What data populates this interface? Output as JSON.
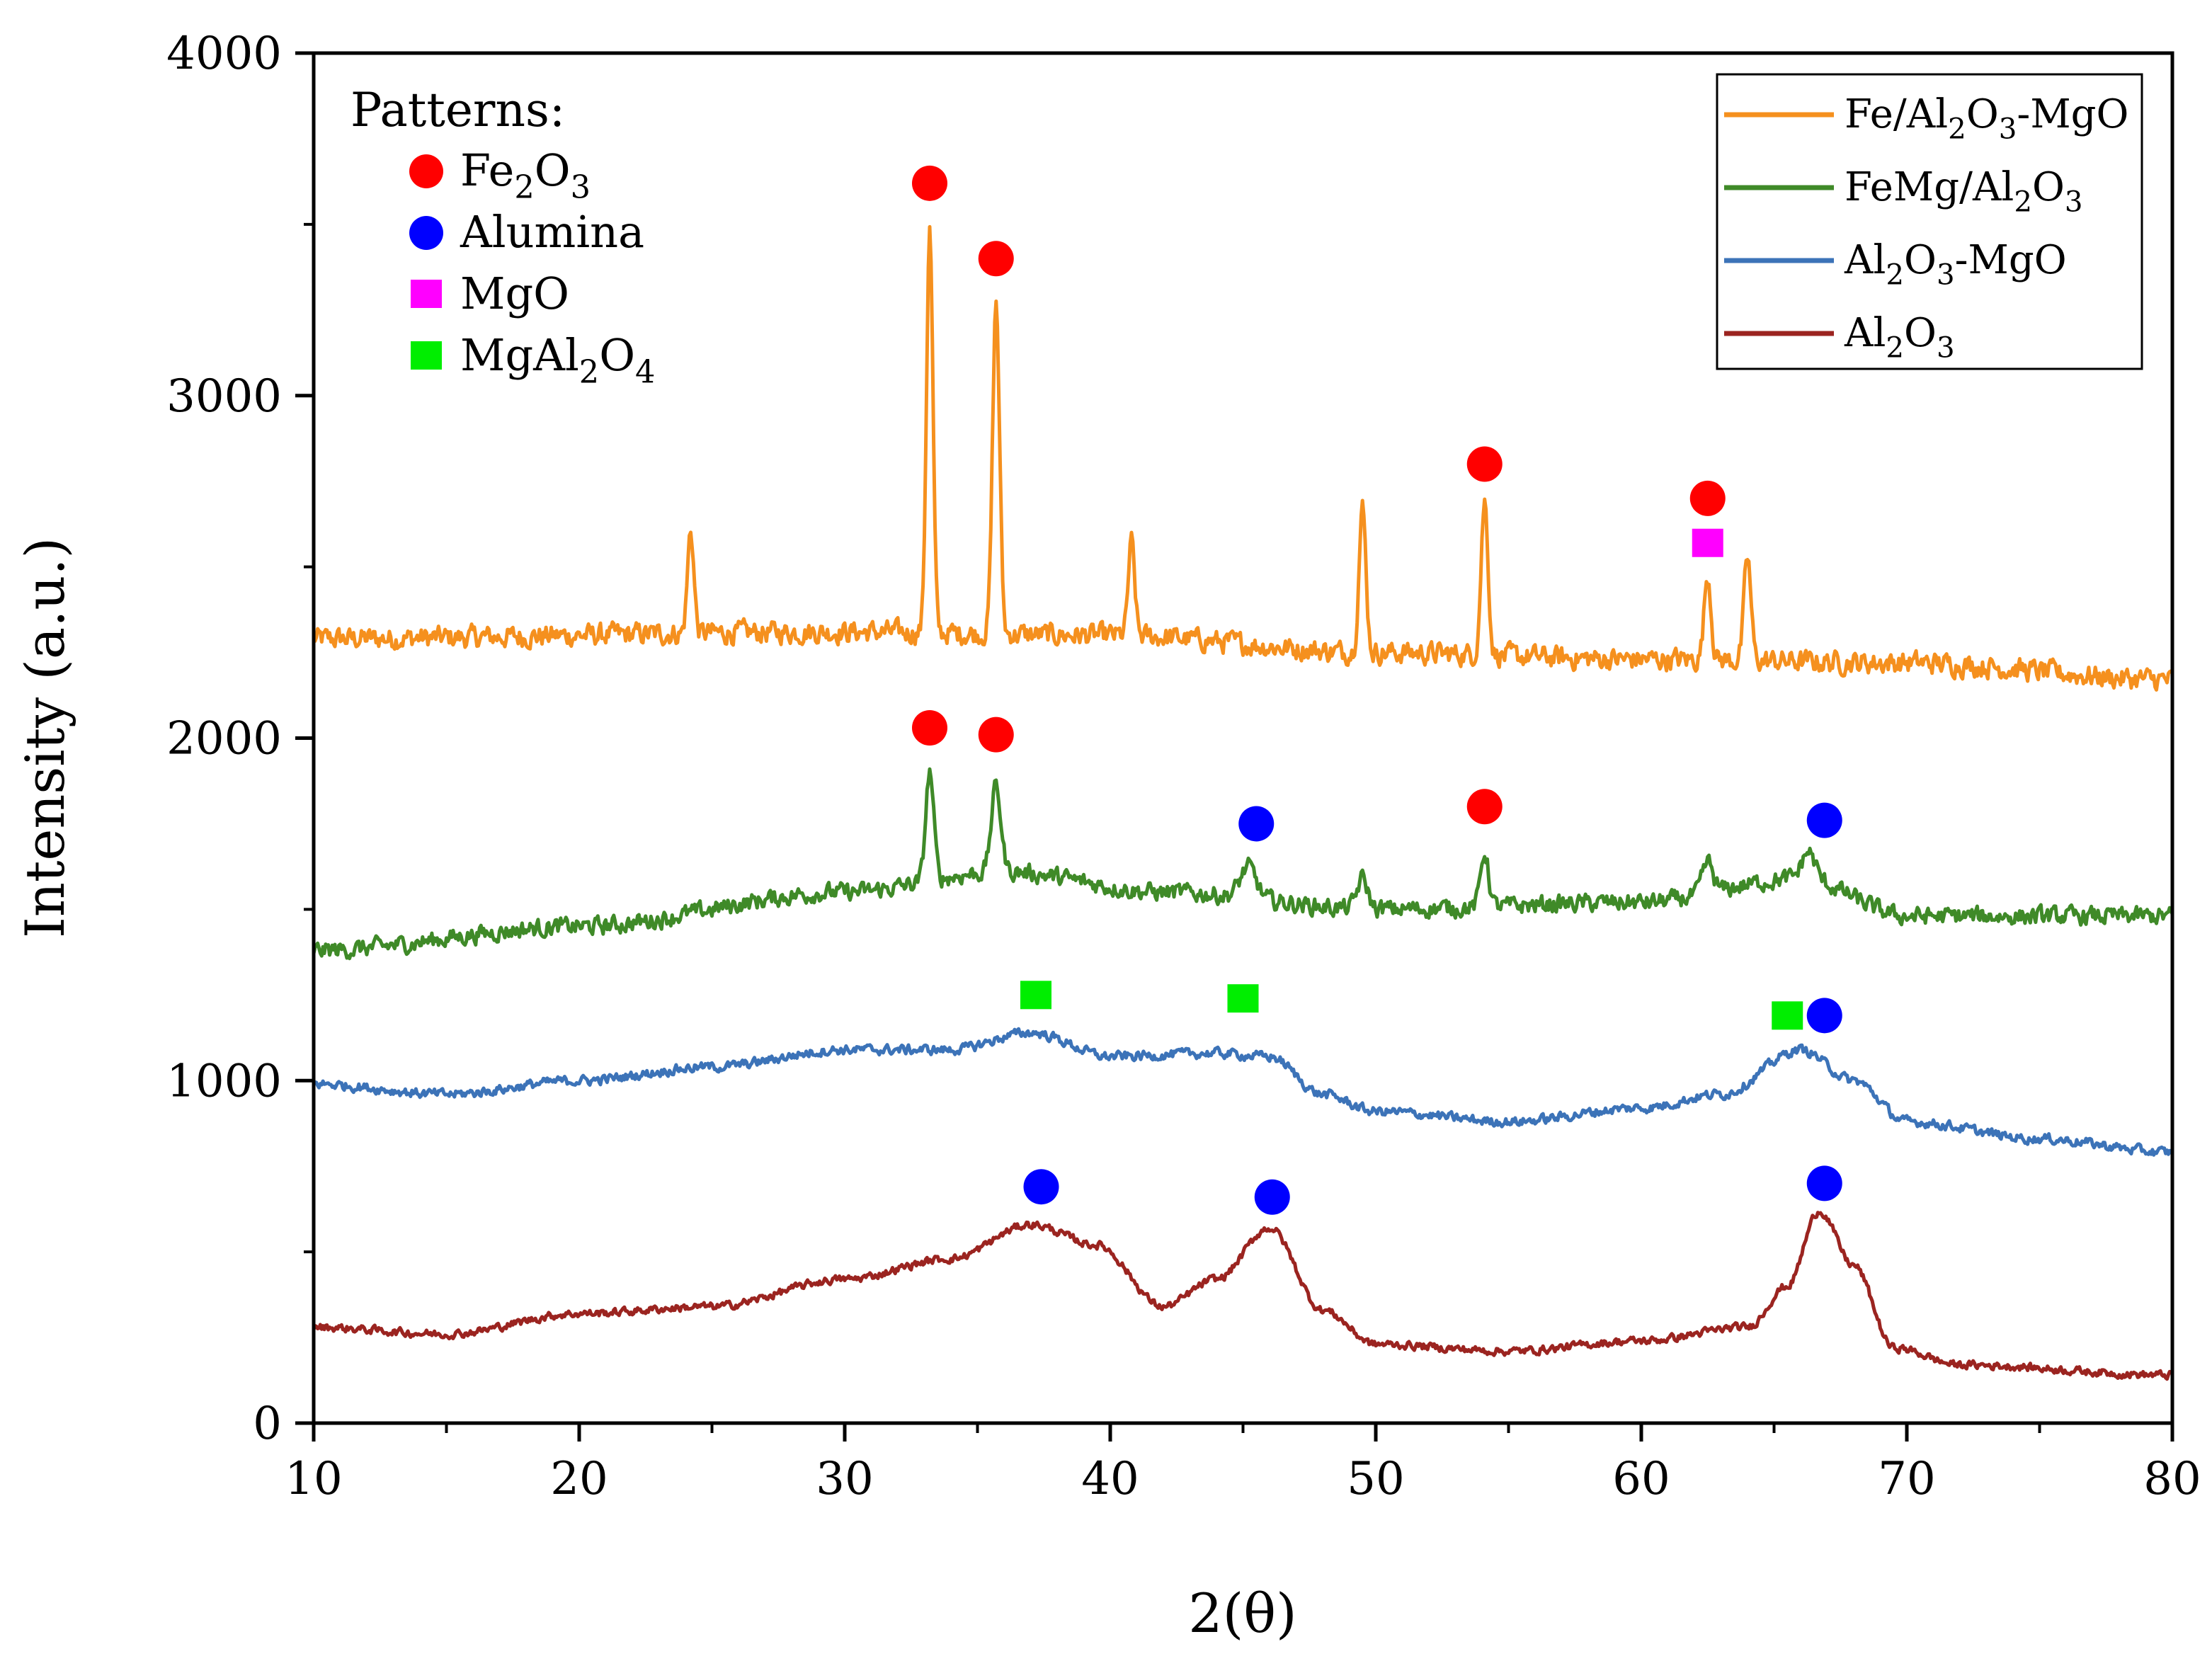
{
  "chart_data": {
    "type": "line",
    "title": "",
    "xlabel": "2(θ)",
    "ylabel": "Intensity (a.u.)",
    "xlim": [
      10,
      80
    ],
    "ylim": [
      0,
      4000
    ],
    "xticks": [
      10,
      20,
      30,
      40,
      50,
      60,
      70,
      80
    ],
    "yticks": [
      0,
      1000,
      2000,
      3000,
      4000
    ],
    "legend_position": "top-right",
    "series": [
      {
        "name": "Fe/Al2O3-MgO",
        "label": {
          "a": "Fe/Al",
          "s1": "2",
          "b": "O",
          "s2": "3",
          "c": "-MgO"
        },
        "color": "#f5901e",
        "baseline": [
          [
            10,
            2290
          ],
          [
            30,
            2310
          ],
          [
            40,
            2300
          ],
          [
            50,
            2250
          ],
          [
            60,
            2230
          ],
          [
            70,
            2220
          ],
          [
            80,
            2170
          ]
        ],
        "noise": 50,
        "peaks": [
          [
            24.2,
            300,
            0.12
          ],
          [
            33.2,
            1180,
            0.12
          ],
          [
            35.7,
            970,
            0.13
          ],
          [
            40.8,
            270,
            0.12
          ],
          [
            49.5,
            420,
            0.13
          ],
          [
            54.1,
            450,
            0.13
          ],
          [
            62.5,
            250,
            0.13
          ],
          [
            64.0,
            300,
            0.13
          ]
        ]
      },
      {
        "name": "FeMg/Al2O3",
        "label": {
          "a": "FeMg/Al",
          "s1": "2",
          "b": "O",
          "s2": "3",
          "c": ""
        },
        "color": "#3f8a28",
        "baseline": [
          [
            10,
            1380
          ],
          [
            20,
            1450
          ],
          [
            30,
            1550
          ],
          [
            36,
            1610
          ],
          [
            42,
            1550
          ],
          [
            50,
            1500
          ],
          [
            60,
            1520
          ],
          [
            66,
            1590
          ],
          [
            70,
            1480
          ],
          [
            80,
            1480
          ]
        ],
        "noise": 40,
        "peaks": [
          [
            33.2,
            320,
            0.15
          ],
          [
            35.7,
            250,
            0.18
          ],
          [
            45.2,
            90,
            0.3
          ],
          [
            49.5,
            90,
            0.2
          ],
          [
            54.1,
            160,
            0.15
          ],
          [
            62.5,
            90,
            0.2
          ],
          [
            66.3,
            80,
            0.25
          ]
        ]
      },
      {
        "name": "Al2O3-MgO",
        "label": {
          "a": "Al",
          "s1": "2",
          "b": "O",
          "s2": "3",
          "c": "-MgO"
        },
        "color": "#3c73b8",
        "baseline": [
          [
            10,
            990
          ],
          [
            15,
            960
          ],
          [
            20,
            1000
          ],
          [
            25,
            1040
          ],
          [
            30,
            1090
          ],
          [
            34,
            1090
          ],
          [
            37,
            1140
          ],
          [
            40,
            1070
          ],
          [
            44,
            1080
          ],
          [
            46,
            1070
          ],
          [
            48,
            960
          ],
          [
            50,
            910
          ],
          [
            55,
            880
          ],
          [
            60,
            920
          ],
          [
            63,
            960
          ],
          [
            66,
            1090
          ],
          [
            68,
            1000
          ],
          [
            70,
            880
          ],
          [
            75,
            830
          ],
          [
            80,
            790
          ]
        ],
        "noise": 22,
        "peaks": []
      },
      {
        "name": "Al2O3",
        "label": {
          "a": "Al",
          "s1": "2",
          "b": "O",
          "s2": "3",
          "c": ""
        },
        "color": "#9b2420",
        "baseline": [
          [
            10,
            280
          ],
          [
            15,
            260
          ],
          [
            20,
            320
          ],
          [
            25,
            340
          ],
          [
            30,
            420
          ],
          [
            34,
            480
          ],
          [
            37,
            580
          ],
          [
            39.5,
            520
          ],
          [
            42,
            340
          ],
          [
            44,
            420
          ],
          [
            46,
            570
          ],
          [
            48,
            330
          ],
          [
            50,
            230
          ],
          [
            55,
            210
          ],
          [
            60,
            240
          ],
          [
            64,
            280
          ],
          [
            65.5,
            400
          ],
          [
            66.7,
            620
          ],
          [
            68,
            460
          ],
          [
            69.5,
            220
          ],
          [
            72,
            170
          ],
          [
            80,
            140
          ]
        ],
        "noise": 18,
        "peaks": []
      }
    ],
    "marker_legend": {
      "title": "Patterns:",
      "items": [
        {
          "name": "Fe2O3",
          "shape": "circle",
          "color": "#ff0000",
          "label": {
            "a": "Fe",
            "s1": "2",
            "b": "O",
            "s2": "3",
            "c": ""
          }
        },
        {
          "name": "Alumina",
          "shape": "circle",
          "color": "#0000ff",
          "label": {
            "a": "Alumina",
            "s1": "",
            "b": "",
            "s2": "",
            "c": ""
          }
        },
        {
          "name": "MgO",
          "shape": "square",
          "color": "#ff00ff",
          "label": {
            "a": "MgO",
            "s1": "",
            "b": "",
            "s2": "",
            "c": ""
          }
        },
        {
          "name": "MgAl2O4",
          "shape": "square",
          "color": "#00ee00",
          "label": {
            "a": "MgAl",
            "s1": "2",
            "b": "O",
            "s2": "4",
            "c": ""
          }
        }
      ]
    },
    "peak_markers": [
      {
        "phase": "Fe2O3",
        "shape": "circle",
        "color": "#ff0000",
        "x": 33.2,
        "y": 3620
      },
      {
        "phase": "Fe2O3",
        "shape": "circle",
        "color": "#ff0000",
        "x": 35.7,
        "y": 3400
      },
      {
        "phase": "Fe2O3",
        "shape": "circle",
        "color": "#ff0000",
        "x": 54.1,
        "y": 2800
      },
      {
        "phase": "Fe2O3",
        "shape": "circle",
        "color": "#ff0000",
        "x": 62.5,
        "y": 2700
      },
      {
        "phase": "MgO",
        "shape": "square",
        "color": "#ff00ff",
        "x": 62.5,
        "y": 2570
      },
      {
        "phase": "Fe2O3",
        "shape": "circle",
        "color": "#ff0000",
        "x": 33.2,
        "y": 2030
      },
      {
        "phase": "Fe2O3",
        "shape": "circle",
        "color": "#ff0000",
        "x": 35.7,
        "y": 2010
      },
      {
        "phase": "Alumina",
        "shape": "circle",
        "color": "#0000ff",
        "x": 45.5,
        "y": 1750
      },
      {
        "phase": "Fe2O3",
        "shape": "circle",
        "color": "#ff0000",
        "x": 54.1,
        "y": 1800
      },
      {
        "phase": "Alumina",
        "shape": "circle",
        "color": "#0000ff",
        "x": 66.9,
        "y": 1760
      },
      {
        "phase": "MgAl2O4",
        "shape": "square",
        "color": "#00ee00",
        "x": 37.2,
        "y": 1250
      },
      {
        "phase": "MgAl2O4",
        "shape": "square",
        "color": "#00ee00",
        "x": 45.0,
        "y": 1240
      },
      {
        "phase": "MgAl2O4",
        "shape": "square",
        "color": "#00ee00",
        "x": 65.5,
        "y": 1190
      },
      {
        "phase": "Alumina",
        "shape": "circle",
        "color": "#0000ff",
        "x": 66.9,
        "y": 1190
      },
      {
        "phase": "Alumina",
        "shape": "circle",
        "color": "#0000ff",
        "x": 37.4,
        "y": 690
      },
      {
        "phase": "Alumina",
        "shape": "circle",
        "color": "#0000ff",
        "x": 46.1,
        "y": 660
      },
      {
        "phase": "Alumina",
        "shape": "circle",
        "color": "#0000ff",
        "x": 66.9,
        "y": 700
      }
    ]
  }
}
